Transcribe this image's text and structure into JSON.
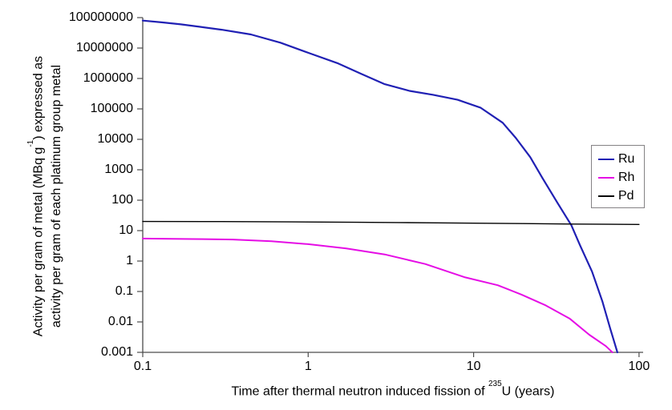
{
  "chart_data": {
    "type": "line",
    "title": "",
    "x_scale": "log",
    "y_scale": "log",
    "xlim": [
      0.1,
      100
    ],
    "ylim": [
      0.001,
      100000000
    ],
    "grid": false,
    "background": "#ffffff",
    "axis_color": "#4c4c4c",
    "xlabel_parts": {
      "prefix": "Time after thermal neutron induced fission of ",
      "sup": "235",
      "suffix": "U (years)"
    },
    "ylabel_line1_parts": {
      "prefix": "Activity per gram of metal (MBq g",
      "sup": "-1",
      "suffix": ") expressed as"
    },
    "ylabel_line2": "activity per gram of each platinum group metal",
    "x_ticks": [
      {
        "value": 0.1,
        "label": "0.1"
      },
      {
        "value": 1,
        "label": "1"
      },
      {
        "value": 10,
        "label": "10"
      },
      {
        "value": 100,
        "label": "100"
      }
    ],
    "y_ticks": [
      {
        "value": 0.001,
        "label": "0.001"
      },
      {
        "value": 0.01,
        "label": "0.01"
      },
      {
        "value": 0.1,
        "label": "0.1"
      },
      {
        "value": 1,
        "label": "1"
      },
      {
        "value": 10,
        "label": "10"
      },
      {
        "value": 100,
        "label": "100"
      },
      {
        "value": 1000,
        "label": "1000"
      },
      {
        "value": 10000,
        "label": "10000"
      },
      {
        "value": 100000,
        "label": "100000"
      },
      {
        "value": 1000000,
        "label": "1000000"
      },
      {
        "value": 10000000,
        "label": "10000000"
      },
      {
        "value": 100000000,
        "label": "100000000"
      }
    ],
    "legend": {
      "position": "right",
      "border_color": "#848284",
      "background": "#ffffff",
      "entries": [
        "Ru",
        "Rh",
        "Pd"
      ]
    },
    "series": [
      {
        "name": "Ru",
        "color": "#2020b4",
        "stroke_width": 2.2,
        "points": [
          [
            0.1,
            80000000
          ],
          [
            0.13,
            70000000
          ],
          [
            0.17,
            60000000
          ],
          [
            0.22,
            50000000
          ],
          [
            0.3,
            40000000
          ],
          [
            0.45,
            28000000
          ],
          [
            0.68,
            15000000
          ],
          [
            1.0,
            7000000
          ],
          [
            1.5,
            3200000
          ],
          [
            2.1,
            1400000
          ],
          [
            2.9,
            650000
          ],
          [
            4.1,
            390000
          ],
          [
            5.7,
            290000
          ],
          [
            8.0,
            200000
          ],
          [
            11,
            110000
          ],
          [
            15,
            35000
          ],
          [
            18,
            11000
          ],
          [
            22,
            2600
          ],
          [
            26,
            550
          ],
          [
            32,
            85
          ],
          [
            39,
            15
          ],
          [
            44,
            3.3
          ],
          [
            52,
            0.45
          ],
          [
            60,
            0.048
          ],
          [
            67,
            0.006
          ],
          [
            74,
            0.001
          ]
        ]
      },
      {
        "name": "Rh",
        "color": "#e50ce5",
        "stroke_width": 2,
        "points": [
          [
            0.1,
            5.5
          ],
          [
            0.2,
            5.3
          ],
          [
            0.35,
            5.1
          ],
          [
            0.6,
            4.5
          ],
          [
            1.0,
            3.6
          ],
          [
            1.7,
            2.6
          ],
          [
            2.9,
            1.65
          ],
          [
            5.1,
            0.8
          ],
          [
            8.9,
            0.29
          ],
          [
            14,
            0.16
          ],
          [
            19.5,
            0.079
          ],
          [
            27,
            0.036
          ],
          [
            38,
            0.013
          ],
          [
            50,
            0.0038
          ],
          [
            63,
            0.0016
          ],
          [
            69,
            0.001
          ]
        ]
      },
      {
        "name": "Pd",
        "color": "#000000",
        "stroke_width": 1.4,
        "points": [
          [
            0.1,
            20
          ],
          [
            0.3,
            19.8
          ],
          [
            0.8,
            19.4
          ],
          [
            2,
            18.8
          ],
          [
            3.5,
            18.4
          ],
          [
            6,
            18.0
          ],
          [
            10,
            17.6
          ],
          [
            20,
            17.0
          ],
          [
            40,
            16.4
          ],
          [
            100,
            15.9
          ]
        ]
      }
    ]
  }
}
